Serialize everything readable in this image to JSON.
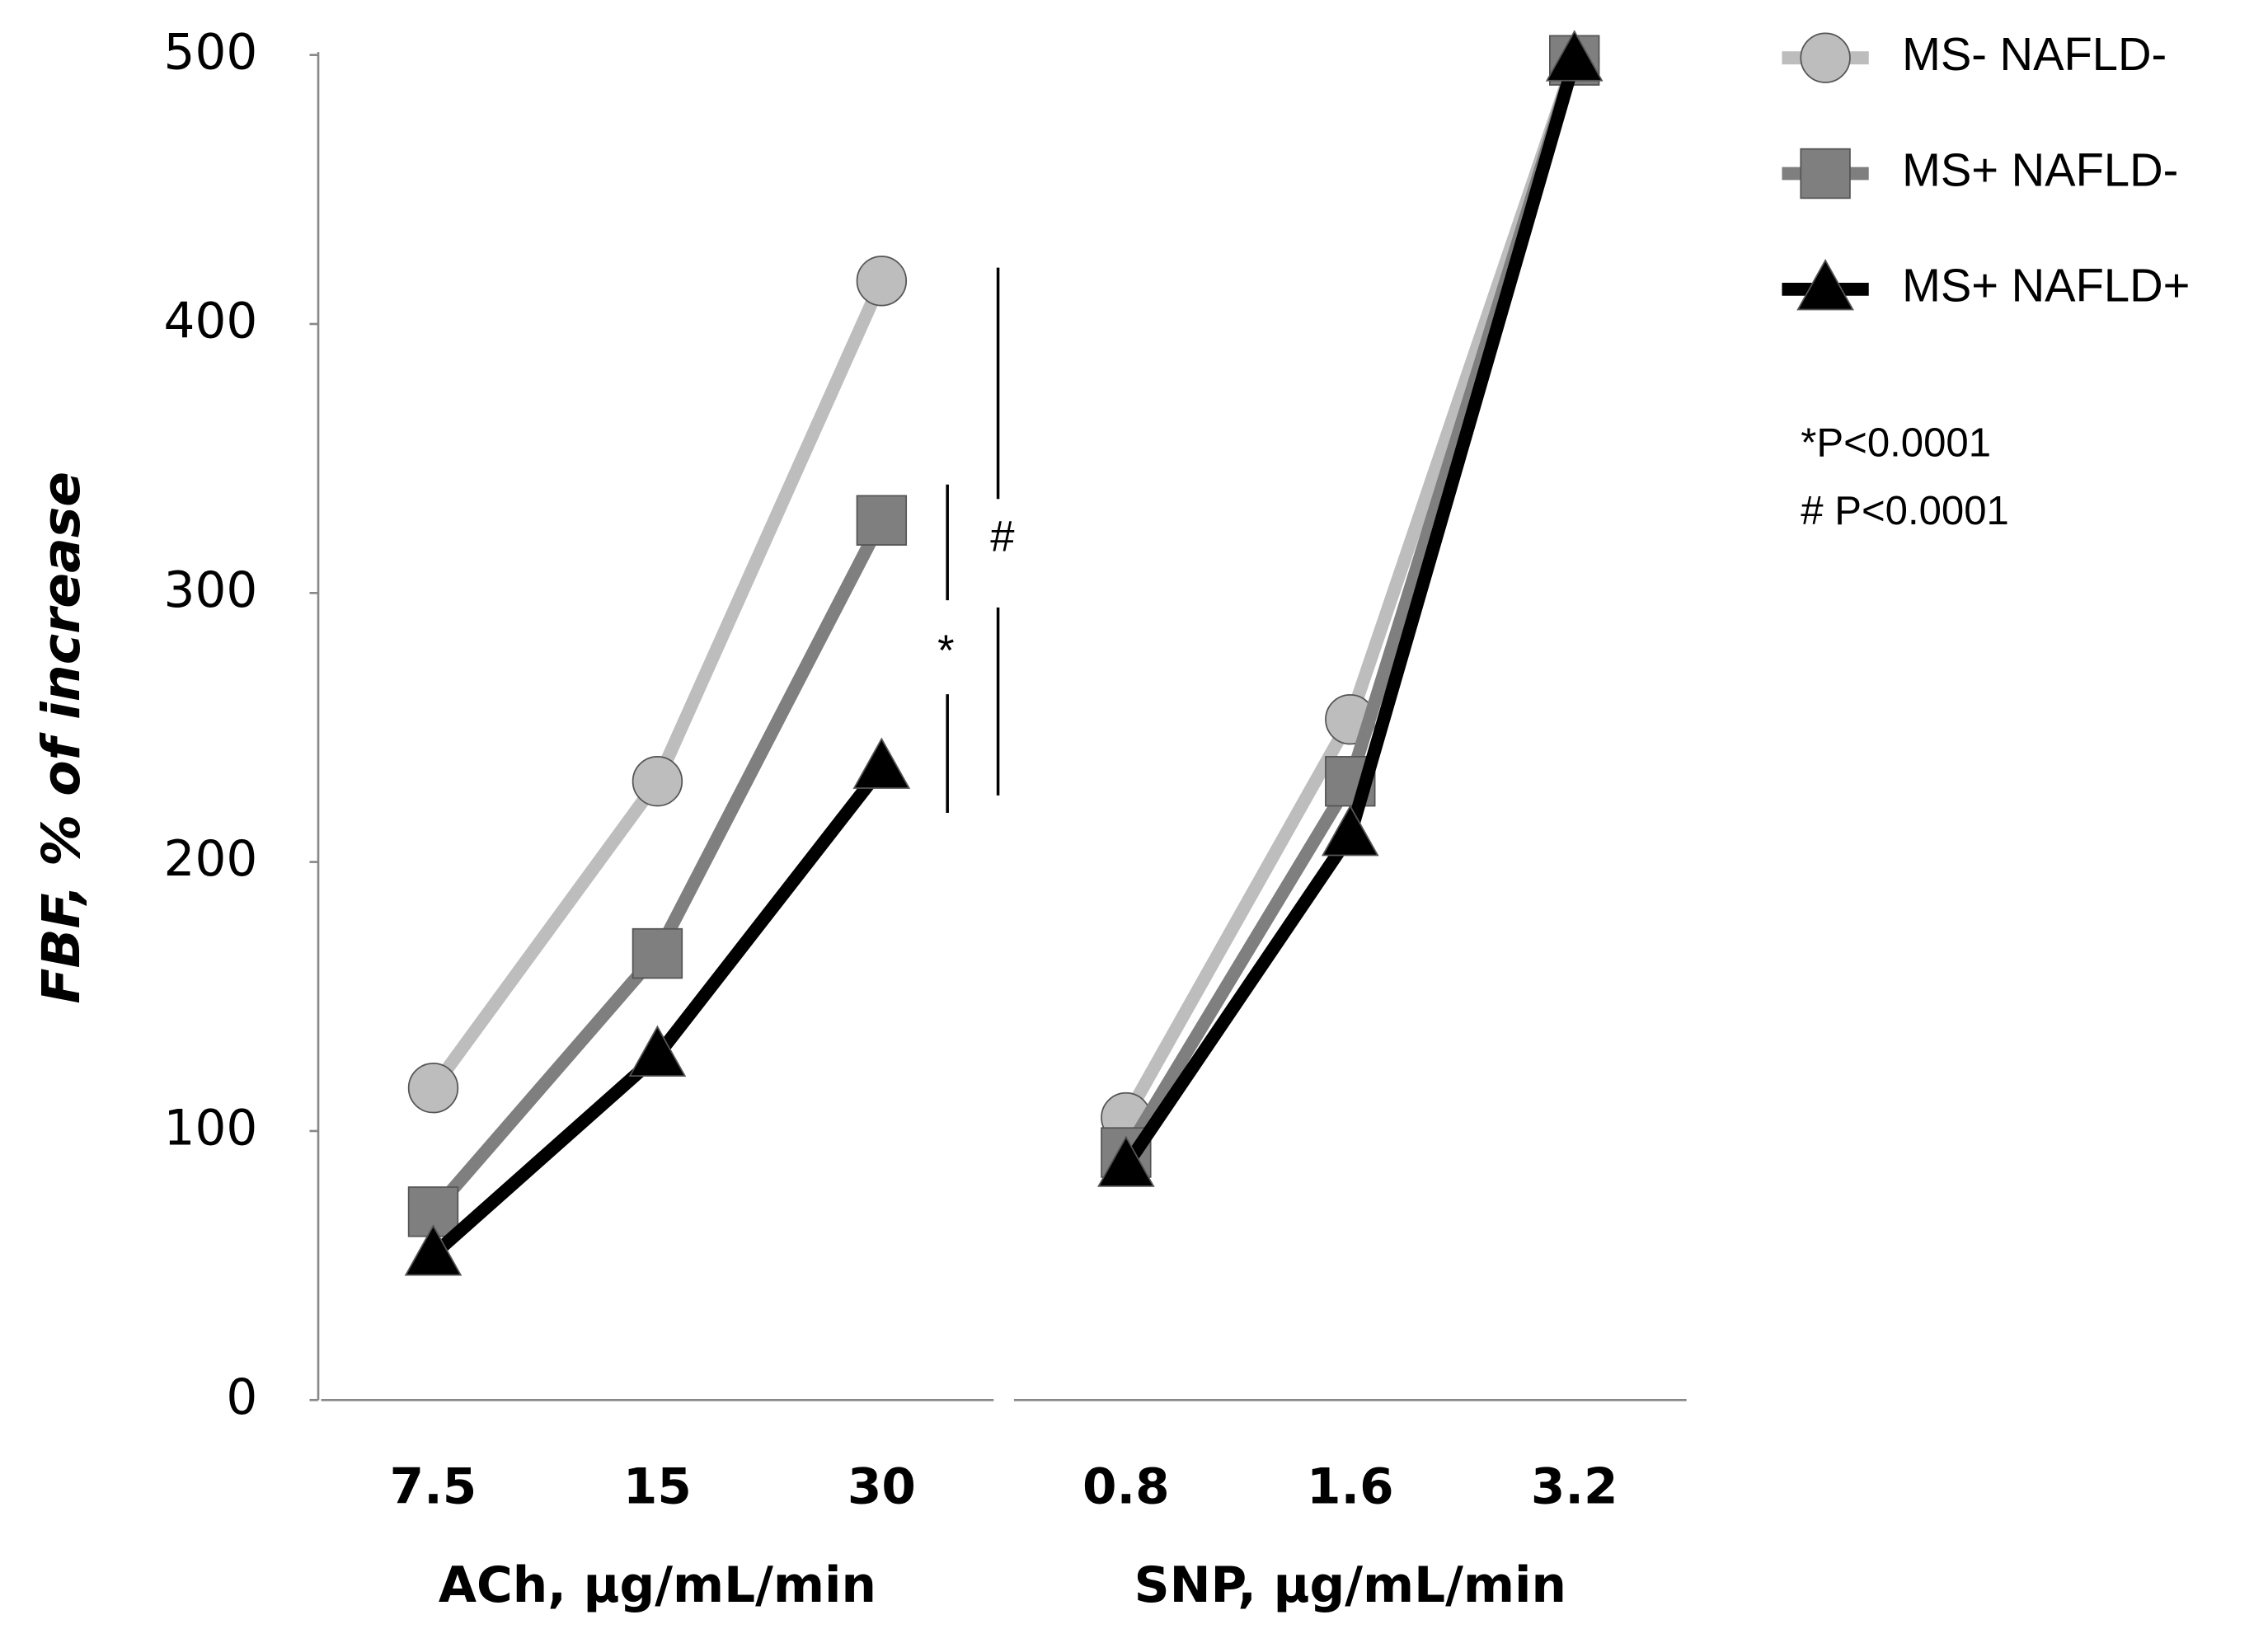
{
  "chart_data": {
    "type": "line",
    "ylabel": "FBF, % of increase",
    "xlabels": [
      "ACh, μg/mL/min",
      "SNP, μg/mL/min"
    ],
    "categories": [
      "7.5",
      "15",
      "30",
      null,
      "0.8",
      "1.6",
      "3.2"
    ],
    "ylim": [
      0,
      500
    ],
    "yticks": [
      0,
      100,
      200,
      300,
      400,
      500
    ],
    "grid": false,
    "legend": "top-right",
    "series": [
      {
        "name": "MS- NAFLD-",
        "color": "#bdbdbd",
        "marker": "circle",
        "values": [
          116,
          230,
          416,
          null,
          105,
          253,
          498
        ]
      },
      {
        "name": "MS+ NAFLD-",
        "color": "#7f7f7f",
        "marker": "square",
        "values": [
          70,
          166,
          327,
          null,
          92,
          230,
          498
        ]
      },
      {
        "name": "MS+ NAFLD+",
        "color": "#000000",
        "marker": "triangle",
        "values": [
          54,
          128,
          235,
          null,
          87,
          210,
          498
        ]
      }
    ],
    "annotations": [
      "*",
      "#",
      "*P<0.0001",
      "# P<0.0001"
    ]
  }
}
